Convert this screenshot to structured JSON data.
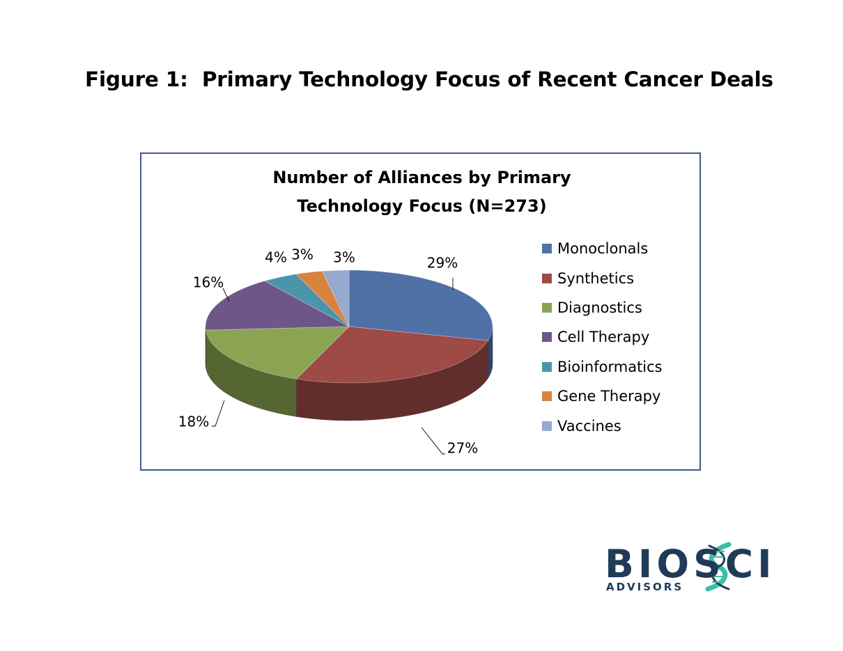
{
  "figure_title": "Figure 1:  Primary Technology Focus of Recent Cancer Deals",
  "chart_data": {
    "type": "pie",
    "title_lines": [
      "Number of Alliances by Primary",
      "Technology Focus (N=273)"
    ],
    "categories": [
      "Monoclonals",
      "Synthetics",
      "Diagnostics",
      "Cell Therapy",
      "Bioinformatics",
      "Gene Therapy",
      "Vaccines"
    ],
    "values": [
      29,
      27,
      18,
      16,
      4,
      3,
      3
    ],
    "data_labels": [
      "29%",
      "27%",
      "18%",
      "16%",
      "4%",
      "3%",
      "3%"
    ],
    "colors": [
      "#4f71a6",
      "#9e4a47",
      "#8aa453",
      "#6e5689",
      "#4b95ab",
      "#d9823d",
      "#96a9cf"
    ],
    "legend_position": "right",
    "style": "3d"
  },
  "logo": {
    "wordmark": "BIOSCI",
    "subtitle": "ADVISORS",
    "colors": {
      "text": "#1f3b57",
      "helix": "#3bbfa6"
    }
  }
}
